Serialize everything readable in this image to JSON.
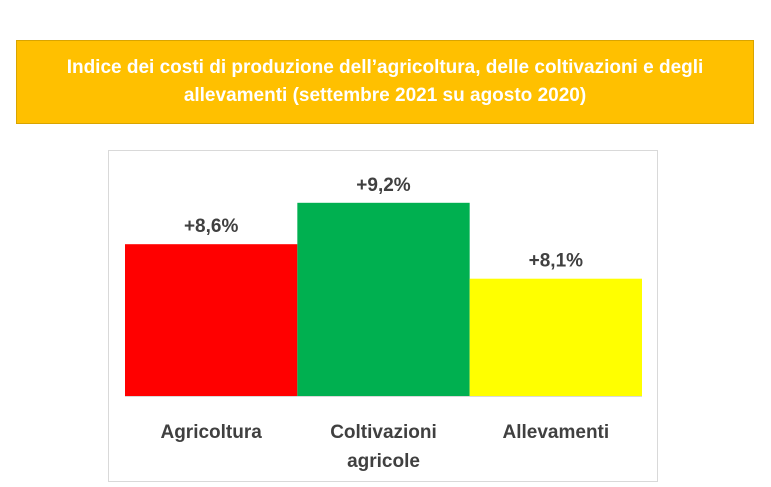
{
  "chart_data": {
    "type": "bar",
    "title": "Indice dei costi di produzione dell’agricoltura, delle coltivazioni e degli allevamenti (settembre 2021 su agosto 2020)",
    "title_lines": [
      "Indice dei costi di produzione dell’agricoltura, delle coltivazioni e degli",
      "allevamenti (settembre 2021 su agosto 2020)"
    ],
    "categories": [
      [
        "Agricoltura"
      ],
      [
        "Coltivazioni",
        "agricole"
      ],
      [
        "Allevamenti"
      ]
    ],
    "values": [
      8.6,
      9.2,
      8.1
    ],
    "data_labels": [
      "+8,6%",
      "+9,2%",
      "+8,1%"
    ],
    "colors": [
      "#ff0000",
      "#00b050",
      "#ffff00"
    ],
    "title_background": "#ffc000",
    "xlabel": "",
    "ylabel": "",
    "ylim": [
      6.4,
      9.4
    ],
    "grid": false,
    "legend": "none"
  }
}
